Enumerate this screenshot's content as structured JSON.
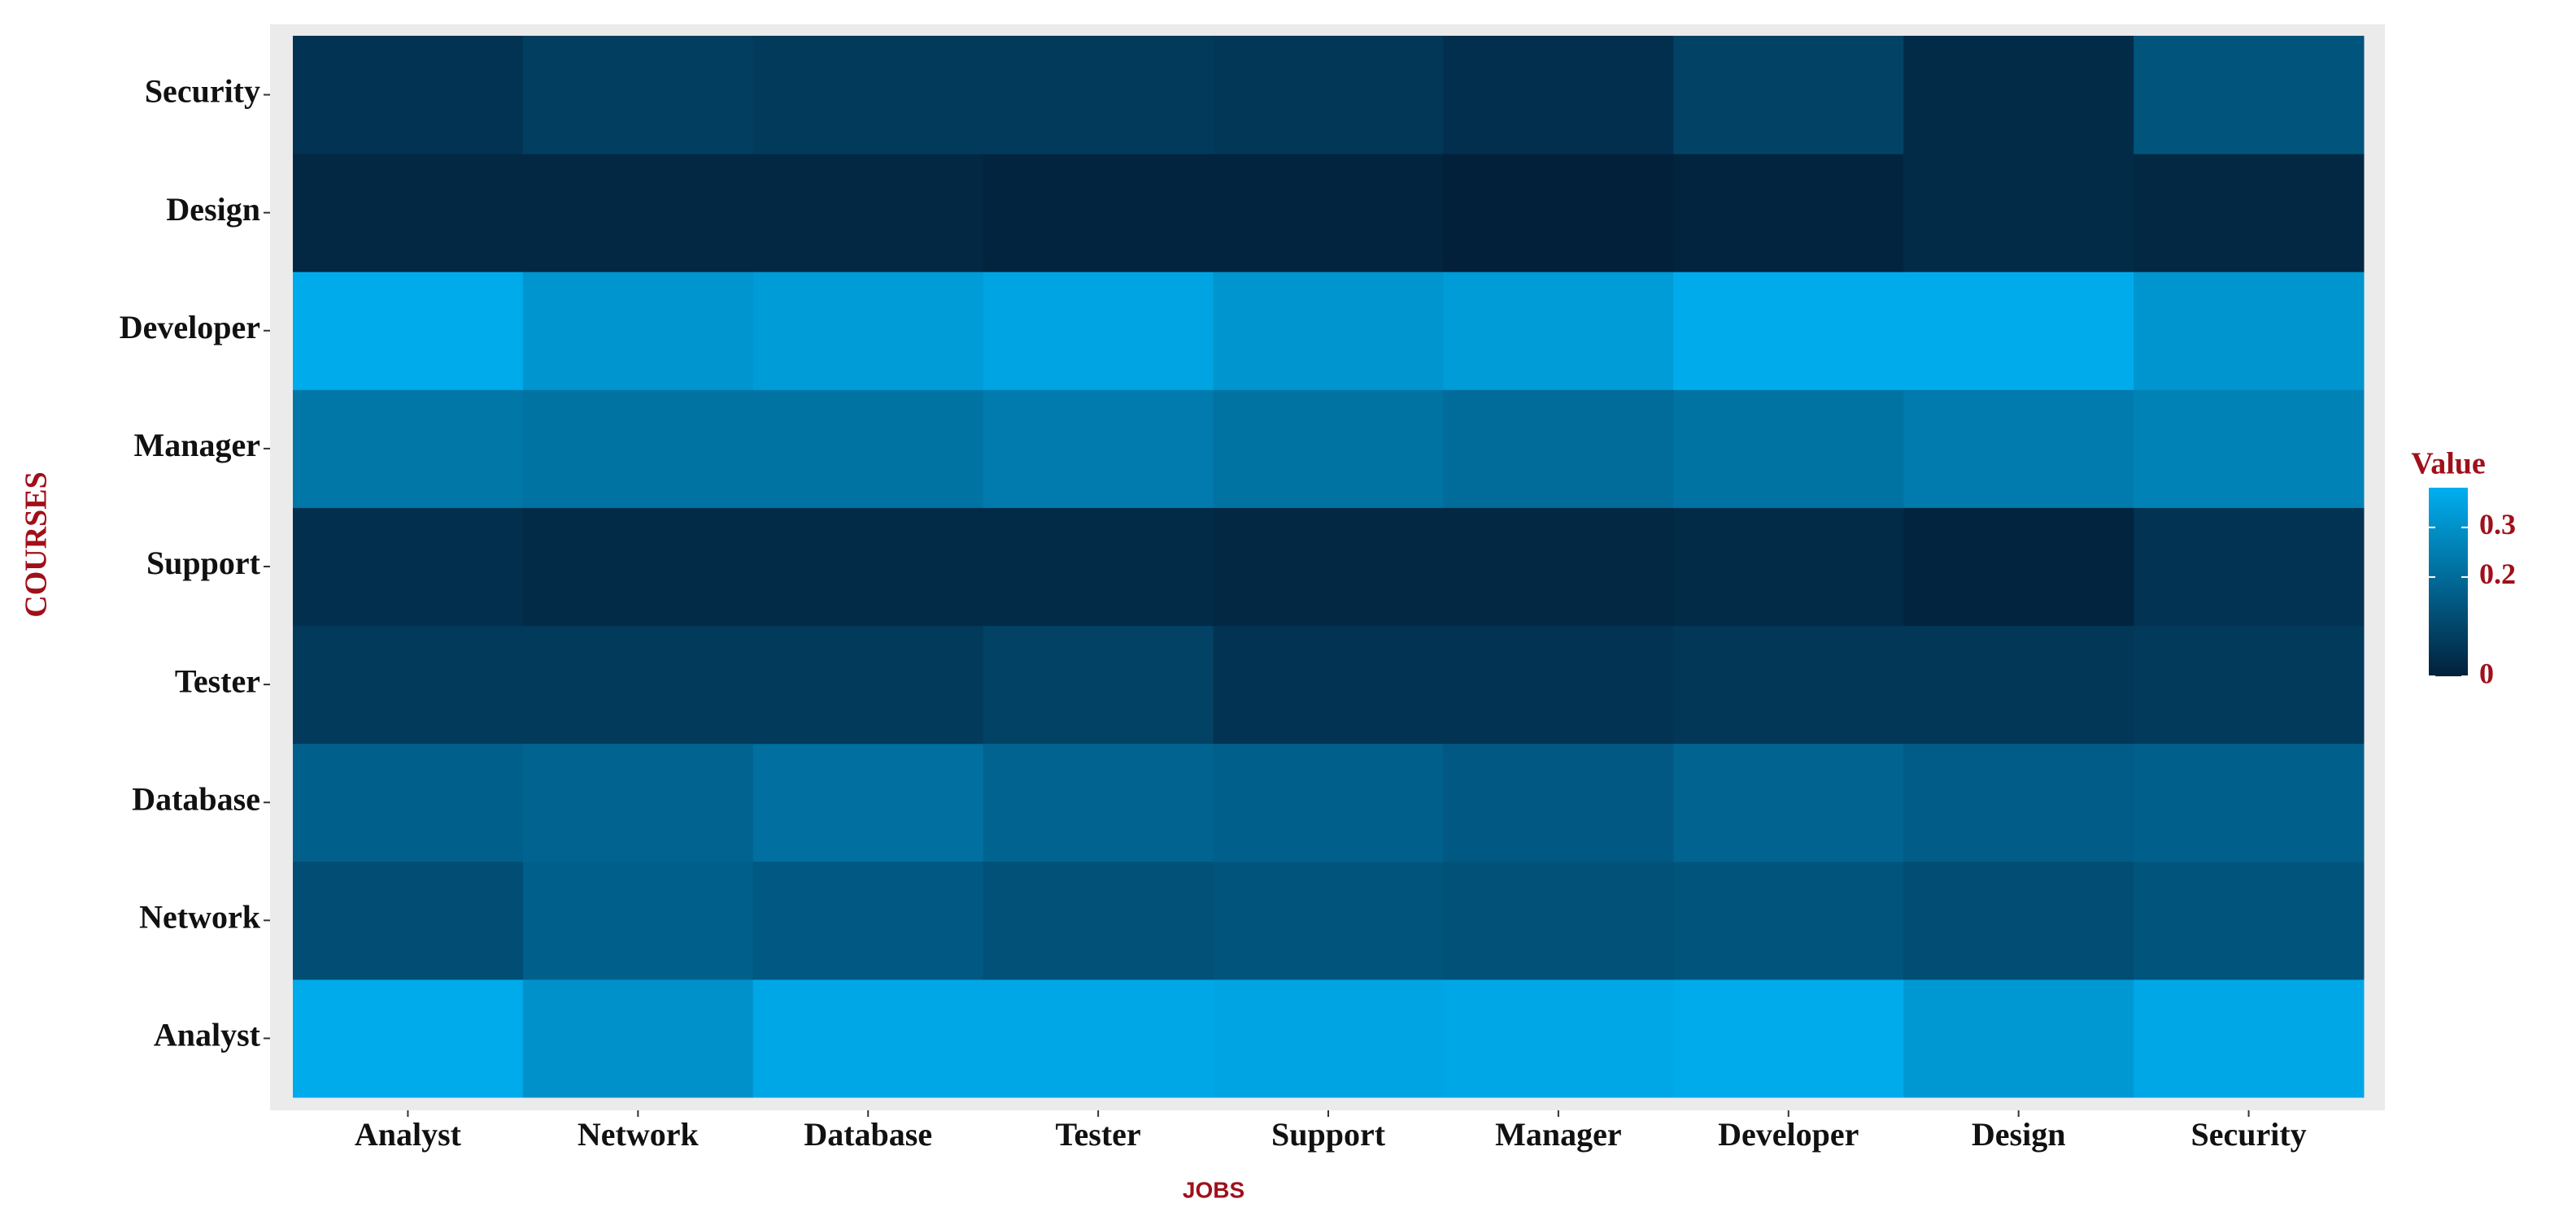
{
  "chart_data": {
    "type": "heatmap",
    "x_label": "JOBS",
    "y_label": "COURSES",
    "legend_title": "Value",
    "x_categories": [
      "Analyst",
      "Network",
      "Database",
      "Tester",
      "Support",
      "Manager",
      "Developer",
      "Design",
      "Security"
    ],
    "y_categories": [
      "Analyst",
      "Network",
      "Database",
      "Tester",
      "Support",
      "Manager",
      "Developer",
      "Design",
      "Security"
    ],
    "values": [
      [
        0.37,
        0.3,
        0.36,
        0.36,
        0.35,
        0.36,
        0.37,
        0.32,
        0.36
      ],
      [
        0.12,
        0.17,
        0.15,
        0.13,
        0.14,
        0.13,
        0.14,
        0.12,
        0.14
      ],
      [
        0.17,
        0.18,
        0.21,
        0.18,
        0.17,
        0.15,
        0.18,
        0.16,
        0.17
      ],
      [
        0.07,
        0.07,
        0.07,
        0.09,
        0.05,
        0.05,
        0.06,
        0.06,
        0.07
      ],
      [
        0.04,
        0.03,
        0.03,
        0.03,
        0.02,
        0.02,
        0.03,
        0.01,
        0.05
      ],
      [
        0.23,
        0.22,
        0.22,
        0.24,
        0.22,
        0.2,
        0.22,
        0.24,
        0.26
      ],
      [
        0.37,
        0.31,
        0.33,
        0.35,
        0.31,
        0.33,
        0.37,
        0.37,
        0.31
      ],
      [
        0.02,
        0.02,
        0.02,
        0.01,
        0.01,
        0.0,
        0.01,
        0.03,
        0.02
      ],
      [
        0.05,
        0.08,
        0.07,
        0.07,
        0.06,
        0.04,
        0.09,
        0.03,
        0.14
      ]
    ],
    "clim": [
      0,
      0.38
    ],
    "cticks": [
      0,
      0.2,
      0.3
    ],
    "low_color": "#02203a",
    "high_color": "#00aff0"
  }
}
